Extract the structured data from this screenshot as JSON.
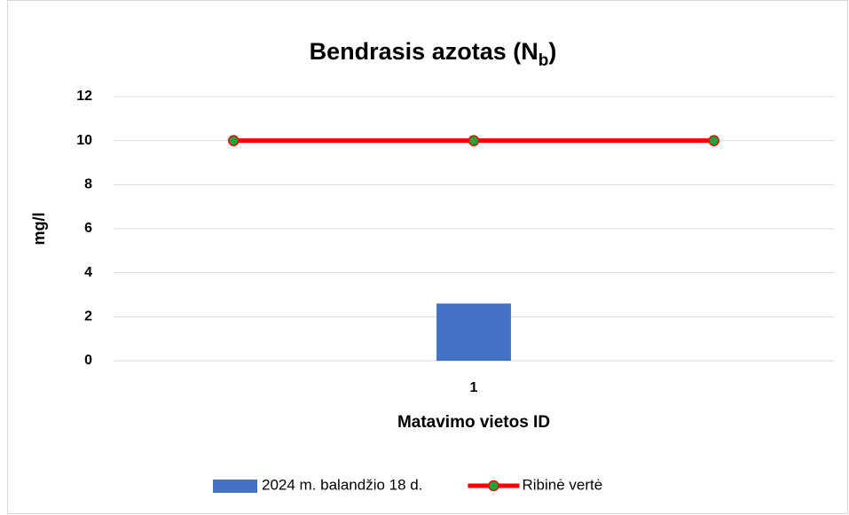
{
  "chart_data": {
    "type": "combo",
    "title": [
      "Bendrasis azotas (N",
      "b",
      ")"
    ],
    "x_label": "Matavimo vietos ID",
    "y_label": "mg/l",
    "categories": [
      null,
      "1",
      null
    ],
    "series": [
      {
        "name": "2024 m. balandžio 18 d.",
        "type": "bar",
        "color": "#4472c4",
        "values": [
          null,
          2.6,
          null
        ]
      },
      {
        "name": "Ribinė vertė",
        "type": "line",
        "color": "#ff0000",
        "marker_color": "#1fa33a",
        "values": [
          10,
          10,
          10
        ]
      }
    ],
    "ylim": [
      0,
      12
    ],
    "yticks": [
      0,
      2,
      4,
      6,
      8,
      10,
      12
    ],
    "grid": true,
    "legend": "bottom"
  }
}
